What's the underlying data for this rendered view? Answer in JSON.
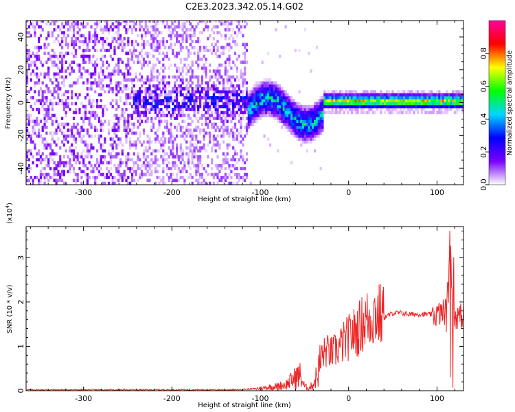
{
  "title": "C2E3.2023.342.05.14.G02",
  "chart_data": [
    {
      "type": "heatmap",
      "xlabel": "Height of straight line (km)",
      "ylabel": "Frequency (Hz)",
      "xlim": [
        -365,
        130
      ],
      "ylim": [
        -50,
        50
      ],
      "x_ticks": [
        -300,
        -200,
        -100,
        0,
        100
      ],
      "y_ticks": [
        -40,
        -20,
        0,
        20,
        40
      ],
      "colorbar": {
        "label": "Normalized spectral amplitude",
        "range": [
          0.0,
          1.0
        ],
        "ticks": [
          0.0,
          0.2,
          0.4,
          0.6,
          0.8
        ],
        "tick_labels": [
          "0.0",
          "0.2",
          "0.4",
          "0.6",
          "0.8"
        ],
        "colormap": [
          "#ffffff",
          "#7a00ff",
          "#0000ff",
          "#00d8ff",
          "#00ff00",
          "#ffff00",
          "#ff0000",
          "#ff00a0"
        ]
      },
      "regions": [
        {
          "x": [
            -365,
            -245
          ],
          "freq": [
            -50,
            50
          ],
          "amplitude": [
            0.0,
            0.15
          ],
          "pattern": "scattered"
        },
        {
          "x": [
            -245,
            -115
          ],
          "freq": [
            -50,
            50
          ],
          "amplitude": [
            0.0,
            0.3
          ],
          "pattern": "scattered, band near 0 Hz"
        },
        {
          "x": [
            -115,
            -30
          ],
          "freq": [
            -15,
            15
          ],
          "amplitude": [
            0.1,
            0.5
          ],
          "pattern": "wavy band"
        },
        {
          "x": [
            -30,
            130
          ],
          "freq": [
            -3,
            3
          ],
          "amplitude": [
            0.4,
            0.9
          ],
          "pattern": "narrow band at 0 Hz"
        }
      ]
    },
    {
      "type": "line",
      "xlabel": "Height of straight line (km)",
      "ylabel": "SNR (10 * v/v)",
      "y_multiplier": "(x10",
      "y_multiplier_exp": "4",
      "xlim": [
        -365,
        130
      ],
      "ylim": [
        0,
        3.7
      ],
      "x_ticks": [
        -300,
        -200,
        -100,
        0,
        100
      ],
      "y_ticks": [
        0,
        1,
        2,
        3
      ],
      "color": "#ee2222",
      "series": [
        {
          "x": [
            -365,
            -300,
            -200,
            -130,
            -100,
            -90,
            -80,
            -70,
            -60,
            -55,
            -50,
            -45,
            -40,
            -35,
            -30,
            -25,
            -20,
            -15,
            -10,
            -5,
            0,
            5,
            10,
            15,
            20,
            25,
            30,
            35,
            40,
            45,
            50,
            60,
            70,
            80,
            90,
            100,
            105,
            110,
            112,
            115,
            118,
            120,
            125,
            130
          ],
          "y": [
            0.02,
            0.02,
            0.02,
            0.02,
            0.05,
            0.08,
            0.1,
            0.15,
            0.3,
            0.35,
            0.1,
            0.05,
            0.15,
            0.4,
            0.8,
            0.9,
            0.85,
            0.9,
            1.0,
            1.1,
            1.2,
            1.3,
            1.35,
            1.5,
            1.6,
            1.65,
            1.75,
            1.7,
            1.65,
            1.7,
            1.75,
            1.75,
            1.72,
            1.73,
            1.72,
            1.72,
            1.75,
            1.8,
            2.2,
            3.7,
            1.0,
            1.7,
            1.68,
            1.68
          ]
        }
      ]
    }
  ]
}
